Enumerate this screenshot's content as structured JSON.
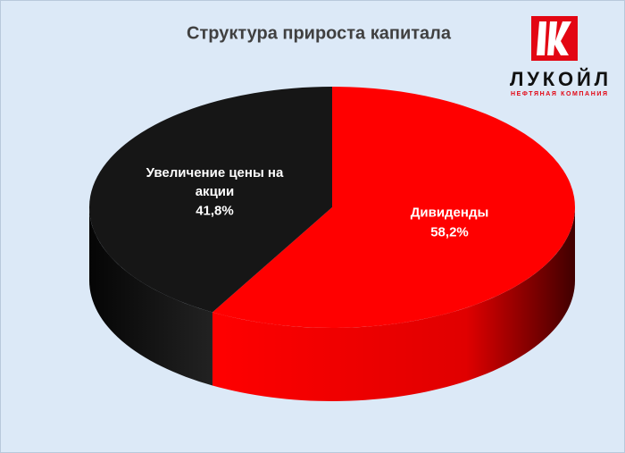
{
  "chart_data": {
    "type": "pie3d",
    "title": "Структура прироста капитала",
    "categories": [
      "Дивиденды",
      "Увеличение цены на акции"
    ],
    "values": [
      58.2,
      41.8
    ],
    "value_labels": [
      "58,2%",
      "41,8%"
    ],
    "colors": [
      "#ff0000",
      "#161616"
    ]
  },
  "logo": {
    "name": "ЛУКОЙЛ",
    "subtitle": "НЕФТЯНАЯ КОМПАНИЯ"
  }
}
